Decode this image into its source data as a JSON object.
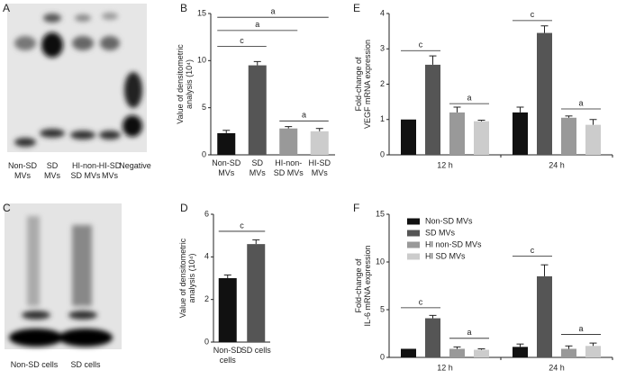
{
  "blots": [
    {
      "panel": "A",
      "lanes": [
        "Non-SD\nMVs",
        "SD\nMVs",
        "HI-non-\nSD MVs",
        "HI-SD\nMVs",
        "Negative"
      ]
    },
    {
      "panel": "C",
      "lanes": [
        "Non-SD cells",
        "SD cells"
      ]
    }
  ],
  "chart_data": [
    {
      "type": "bar",
      "panel": "B",
      "y_label": "Value of densitometric\nanalysis (10⁴)",
      "categories": [
        "Non-SD\nMVs",
        "SD\nMVs",
        "HI-non-\nSD MVs",
        "HI-SD\nMVs"
      ],
      "values": [
        2.3,
        9.5,
        2.8,
        2.5
      ],
      "errors": [
        0.3,
        0.4,
        0.2,
        0.3
      ],
      "colors": [
        "#111111",
        "#555555",
        "#999999",
        "#cccccc"
      ],
      "annotations": [
        "c",
        "a",
        "a",
        "a"
      ],
      "ylim": [
        0,
        15
      ],
      "yticks": [
        0,
        5,
        10,
        15
      ]
    },
    {
      "type": "bar",
      "panel": "D",
      "y_label": "Value of densitometric\nanalysis (10⁴)",
      "categories": [
        "Non-SD\ncells",
        "SD cells"
      ],
      "values": [
        3.0,
        4.6
      ],
      "errors": [
        0.15,
        0.2
      ],
      "colors": [
        "#111111",
        "#555555"
      ],
      "annotations": [
        "c"
      ],
      "ylim": [
        0,
        6
      ],
      "yticks": [
        0,
        2,
        4,
        6
      ]
    },
    {
      "type": "grouped-bar",
      "panel": "E",
      "y_label": "Fold-change of\nVEGF mRNA expression",
      "categories": [
        "12 h",
        "24 h"
      ],
      "series": [
        {
          "name": "Non-SD MVs",
          "color": "#111111",
          "values": [
            1.0,
            1.2
          ],
          "errors": [
            0,
            0.15
          ]
        },
        {
          "name": "SD MVs",
          "color": "#555555",
          "values": [
            2.55,
            3.45
          ],
          "errors": [
            0.25,
            0.2
          ]
        },
        {
          "name": "HI non-SD MVs",
          "color": "#999999",
          "values": [
            1.2,
            1.05
          ],
          "errors": [
            0.15,
            0.05
          ]
        },
        {
          "name": "HI SD MVs",
          "color": "#cccccc",
          "values": [
            0.95,
            0.85
          ],
          "errors": [
            0.03,
            0.15
          ]
        }
      ],
      "annotations": [
        "c",
        "a",
        "c",
        "a"
      ],
      "ylim": [
        0,
        4
      ],
      "yticks": [
        0,
        1,
        2,
        3,
        4
      ]
    },
    {
      "type": "grouped-bar",
      "panel": "F",
      "y_label": "Fold-change of\nIL-6 mRNA expression",
      "categories": [
        "12 h",
        "24 h"
      ],
      "series": [
        {
          "name": "Non-SD MVs",
          "color": "#111111",
          "values": [
            0.9,
            1.1
          ],
          "errors": [
            0,
            0.3
          ]
        },
        {
          "name": "SD MVs",
          "color": "#555555",
          "values": [
            4.1,
            8.5
          ],
          "errors": [
            0.3,
            1.2
          ]
        },
        {
          "name": "HI non-SD MVs",
          "color": "#999999",
          "values": [
            0.9,
            0.9
          ],
          "errors": [
            0.2,
            0.3
          ]
        },
        {
          "name": "HI SD MVs",
          "color": "#cccccc",
          "values": [
            0.8,
            1.2
          ],
          "errors": [
            0.1,
            0.3
          ]
        }
      ],
      "annotations": [
        "c",
        "a",
        "c",
        "a"
      ],
      "legend": "top-left",
      "ylim": [
        0,
        15
      ],
      "yticks": [
        0,
        5,
        10,
        15
      ]
    }
  ]
}
